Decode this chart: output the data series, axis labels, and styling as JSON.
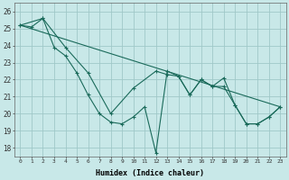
{
  "xlabel": "Humidex (Indice chaleur)",
  "bg_color": "#c8e8e8",
  "grid_color": "#a0c8c8",
  "line_color": "#1a6a5a",
  "xlim": [
    -0.5,
    23.5
  ],
  "ylim": [
    17.5,
    26.5
  ],
  "xticks": [
    0,
    1,
    2,
    3,
    4,
    5,
    6,
    7,
    8,
    9,
    10,
    11,
    12,
    13,
    14,
    15,
    16,
    17,
    18,
    19,
    20,
    21,
    22,
    23
  ],
  "yticks": [
    18,
    19,
    20,
    21,
    22,
    23,
    24,
    25,
    26
  ],
  "line1_x": [
    0,
    1,
    2,
    3,
    4,
    5,
    6,
    7,
    8,
    9,
    10,
    11,
    12,
    13,
    14,
    15,
    16,
    17,
    18,
    19,
    20,
    21,
    22,
    23
  ],
  "line1_y": [
    25.2,
    25.1,
    25.6,
    23.9,
    23.4,
    22.4,
    21.1,
    20.0,
    19.5,
    19.4,
    19.8,
    20.4,
    17.7,
    22.5,
    22.2,
    21.1,
    22.0,
    21.6,
    22.1,
    20.5,
    19.4,
    19.4,
    19.8,
    20.4
  ],
  "line2_x": [
    0,
    2,
    4,
    6,
    8,
    10,
    12,
    13,
    14,
    15,
    16,
    17,
    18,
    19,
    20,
    21,
    22,
    23
  ],
  "line2_y": [
    25.2,
    25.6,
    23.9,
    22.4,
    20.0,
    21.5,
    22.5,
    22.3,
    22.2,
    21.1,
    22.0,
    21.6,
    21.6,
    20.5,
    19.4,
    19.4,
    19.8,
    20.4
  ],
  "line3_x": [
    0,
    23
  ],
  "line3_y": [
    25.2,
    20.4
  ]
}
